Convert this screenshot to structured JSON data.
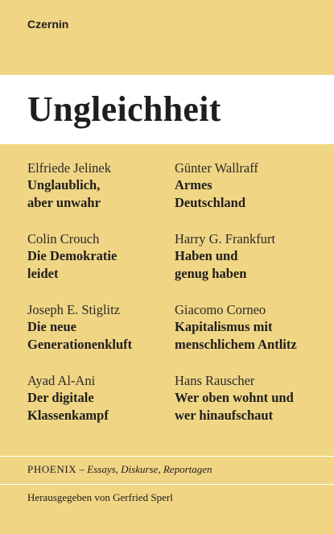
{
  "publisher": "Czernin",
  "title": "Ungleichheit",
  "entries": [
    {
      "author": "Elfriede Jelinek",
      "work_line1": "Unglaublich,",
      "work_line2": "aber unwahr"
    },
    {
      "author": "Günter Wallraff",
      "work_line1": "Armes",
      "work_line2": "Deutschland"
    },
    {
      "author": "Colin Crouch",
      "work_line1": "Die Demokratie",
      "work_line2": "leidet"
    },
    {
      "author": "Harry G. Frankfurt",
      "work_line1": "Haben und",
      "work_line2": "genug haben"
    },
    {
      "author": "Joseph E. Stiglitz",
      "work_line1": "Die neue",
      "work_line2": "Generationenkluft"
    },
    {
      "author": "Giacomo Corneo",
      "work_line1": "Kapitalismus mit",
      "work_line2": "menschlichem Antlitz"
    },
    {
      "author": "Ayad Al-Ani",
      "work_line1": "Der digitale",
      "work_line2": "Klassenkampf"
    },
    {
      "author": "Hans Rauscher",
      "work_line1": "Wer oben wohnt und",
      "work_line2": "wer hinaufschaut"
    }
  ],
  "series": {
    "name": "PHOENIX",
    "separator": " – ",
    "subtitle": "Essays, Diskurse, Reportagen"
  },
  "editor": "Herausgegeben von Gerfried Sperl",
  "colors": {
    "background": "#f0d584",
    "band": "#ffffff",
    "text": "#1e1e1e"
  }
}
